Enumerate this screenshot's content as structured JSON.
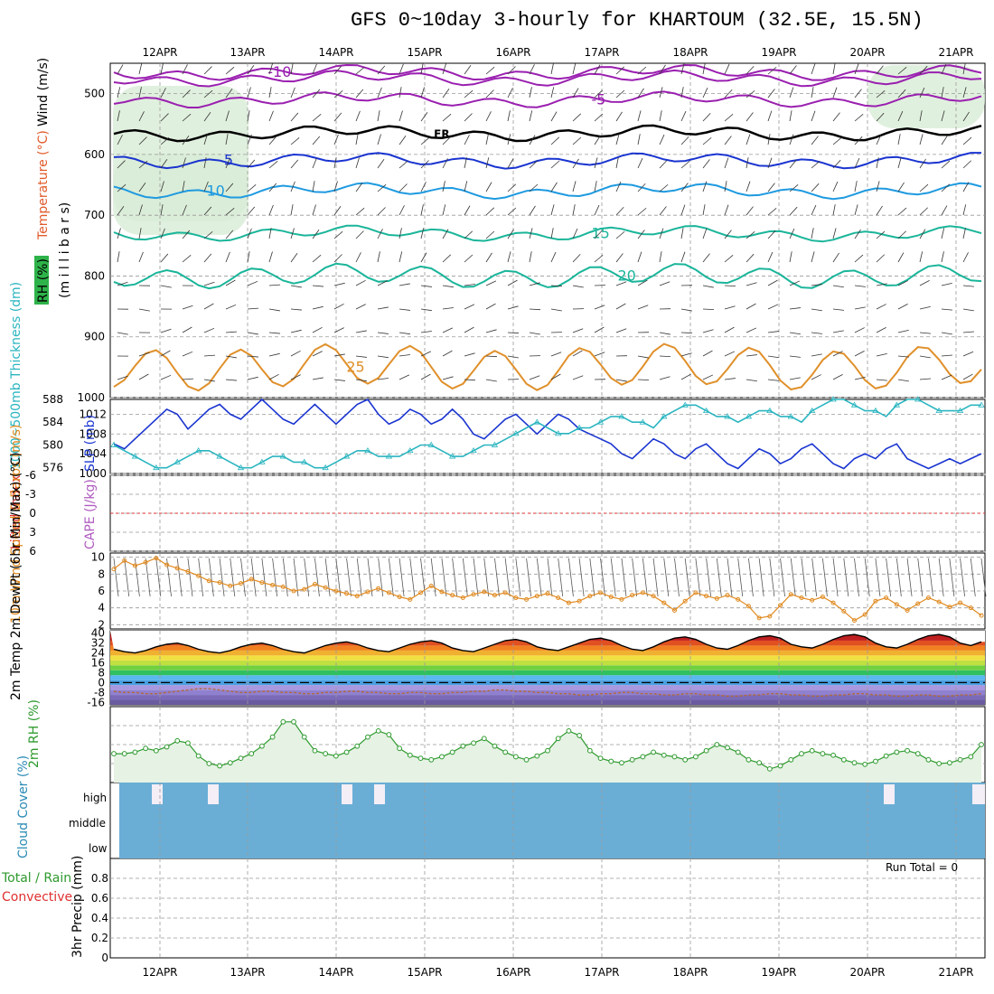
{
  "title": "GFS 0~10day 3-hourly for KHARTOUM (32.5E, 15.5N)",
  "colors": {
    "rh_band": "#2eb34a",
    "temperature_label": "#e05a2a",
    "wind_label": "#000000",
    "thickness": "#2ab5c0",
    "slp": "#1a34d0",
    "lifted_index": "#e03030",
    "cape": "#b05ac0",
    "wind10": "#e08a20",
    "rh2m": "#2e9a2e",
    "cloud_fill": "#6aaed6",
    "precip_total": "#2e9a2e",
    "precip_conv": "#e03030"
  },
  "chart_data": [
    {
      "id": "cross-section",
      "type": "heatmap",
      "ylabel_parts": [
        "RH (%)",
        "Temperature (°C)",
        "Wind (m/s)",
        "(m i l l i b a r s)"
      ],
      "x_dates": [
        "12APR",
        "13APR",
        "14APR",
        "15APR",
        "16APR",
        "17APR",
        "18APR",
        "19APR",
        "20APR",
        "21APR"
      ],
      "ylim": [
        1000,
        450
      ],
      "yticks": [
        500,
        600,
        700,
        800,
        900,
        1000
      ],
      "isotherms": [
        {
          "label": "-10",
          "color": "#9a1fb0",
          "p": 465,
          "label_x": 0.18
        },
        {
          "label": "",
          "color": "#9a1fb0",
          "p": 475,
          "label_x": null
        },
        {
          "label": "-5",
          "color": "#9a1fb0",
          "p": 510,
          "label_x": 0.55
        },
        {
          "label": "FR",
          "color": "#000000",
          "p": 565,
          "label_x": 0.37
        },
        {
          "label": "5",
          "color": "#1a34d0",
          "p": 610,
          "label_x": 0.13
        },
        {
          "label": "10",
          "color": "#1e9ae0",
          "p": 660,
          "label_x": 0.11
        },
        {
          "label": "15",
          "color": "#1ab59a",
          "p": 730,
          "label_x": 0.55
        },
        {
          "label": "20",
          "color": "#1ab59a",
          "p": 800,
          "label_x": 0.58
        },
        {
          "label": "25",
          "color": "#e0902a",
          "p": 950,
          "label_x": 0.27
        }
      ]
    },
    {
      "id": "thickness-slp",
      "type": "line",
      "ylabel_left": "1000~500mb Thickness (dm)",
      "ylabel_right": "SLP (mb)",
      "yticks_left": [
        576,
        580,
        584,
        588
      ],
      "yticks_right": [
        1000,
        1004,
        1008,
        1012
      ],
      "ylim_left": [
        575,
        588
      ],
      "ylim_right": [
        1000,
        1015
      ],
      "series": [
        {
          "name": "SLP (mb)",
          "color": "#1a34d0",
          "values": [
            1006,
            1005,
            1007,
            1009,
            1011,
            1013,
            1012,
            1009,
            1011,
            1013,
            1014,
            1012,
            1011,
            1013,
            1015,
            1013,
            1011,
            1010,
            1012,
            1014,
            1012,
            1010,
            1012,
            1014,
            1015,
            1012,
            1010,
            1011,
            1013,
            1012,
            1010,
            1011,
            1013,
            1011,
            1008,
            1007,
            1009,
            1011,
            1012,
            1010,
            1008,
            1010,
            1012,
            1011,
            1009,
            1008,
            1007,
            1006,
            1004,
            1003,
            1005,
            1007,
            1006,
            1004,
            1003,
            1005,
            1006,
            1004,
            1002,
            1001,
            1003,
            1005,
            1004,
            1002,
            1003,
            1005,
            1006,
            1004,
            1002,
            1001,
            1003,
            1004,
            1003,
            1005,
            1006,
            1003,
            1002,
            1001,
            1002,
            1003,
            1002,
            1003,
            1004
          ]
        },
        {
          "name": "Thickness (dm)",
          "color": "#2ab5c0",
          "values": [
            580,
            579,
            578,
            577,
            576,
            576,
            577,
            578,
            579,
            579,
            578,
            577,
            576,
            576,
            577,
            578,
            578,
            577,
            577,
            576,
            576,
            577,
            578,
            579,
            579,
            578,
            578,
            578,
            579,
            580,
            580,
            579,
            578,
            578,
            579,
            580,
            580,
            581,
            582,
            583,
            584,
            583,
            582,
            582,
            583,
            583,
            584,
            585,
            585,
            584,
            584,
            583,
            585,
            586,
            587,
            587,
            586,
            585,
            585,
            584,
            585,
            586,
            586,
            585,
            585,
            584,
            586,
            587,
            588,
            588,
            587,
            586,
            586,
            585,
            587,
            588,
            588,
            587,
            586,
            586,
            586,
            587,
            587
          ]
        }
      ]
    },
    {
      "id": "lifted-cape",
      "type": "line",
      "ylabel_left": "Lifted Index",
      "ylabel_right": "CAPE (J/kg)",
      "yticks": [
        6,
        3,
        0,
        -3,
        -6
      ],
      "ylim": [
        6,
        -6
      ],
      "series": []
    },
    {
      "id": "wind10m",
      "type": "line",
      "ylabel": "10m Wind Speed & Barbs (m/s)",
      "yticks": [
        2,
        4,
        6,
        8,
        10
      ],
      "ylim": [
        1.5,
        10.5
      ],
      "series": [
        {
          "name": "10m Wind Speed",
          "color": "#e08a20",
          "values": [
            8.6,
            9.6,
            9.0,
            9.4,
            9.9,
            9.1,
            8.7,
            8.3,
            7.8,
            7.2,
            7.0,
            6.6,
            6.9,
            7.4,
            7.0,
            6.7,
            6.5,
            6.0,
            6.2,
            6.8,
            6.4,
            6.0,
            5.7,
            5.4,
            5.9,
            6.3,
            5.8,
            5.3,
            5.0,
            5.8,
            6.6,
            5.9,
            5.5,
            5.2,
            5.6,
            5.9,
            5.5,
            5.8,
            5.2,
            5.0,
            5.4,
            5.7,
            5.2,
            4.6,
            4.8,
            5.4,
            5.8,
            5.3,
            5.0,
            5.5,
            5.8,
            5.4,
            4.6,
            3.7,
            4.8,
            5.8,
            5.4,
            5.1,
            5.5,
            5.0,
            4.2,
            2.8,
            3.0,
            4.3,
            5.6,
            5.2,
            4.9,
            5.3,
            4.6,
            3.6,
            2.5,
            3.2,
            4.8,
            5.2,
            4.4,
            3.7,
            4.5,
            5.2,
            4.7,
            4.1,
            4.6,
            4.0,
            3.1
          ]
        }
      ]
    },
    {
      "id": "temp2m",
      "type": "line",
      "ylabel": "2m Temp 2m DewPt (6hr Min/Max) (°C)",
      "yticks": [
        -16,
        -8,
        0,
        8,
        16,
        24,
        32,
        40
      ],
      "ylim": [
        -18,
        42
      ],
      "series": [
        {
          "name": "2m Temp",
          "color": "#000000",
          "values": [
            27,
            25,
            24,
            26,
            29,
            31,
            32,
            30,
            27,
            25,
            24,
            26,
            29,
            31,
            32,
            30,
            27,
            25,
            24,
            27,
            30,
            32,
            33,
            31,
            28,
            26,
            25,
            28,
            31,
            33,
            34,
            32,
            28,
            26,
            25,
            28,
            31,
            34,
            35,
            33,
            29,
            27,
            26,
            29,
            32,
            35,
            36,
            34,
            30,
            27,
            26,
            29,
            33,
            36,
            37,
            35,
            31,
            28,
            27,
            30,
            34,
            37,
            38,
            36,
            31,
            29,
            28,
            31,
            35,
            38,
            39,
            37,
            32,
            29,
            28,
            31,
            35,
            38,
            39,
            37,
            32,
            30,
            33
          ]
        },
        {
          "name": "2m DewPt",
          "color": "#b06a3a",
          "values": [
            -7,
            -8,
            -8,
            -9,
            -9,
            -8,
            -7,
            -6,
            -5,
            -5,
            -6,
            -7,
            -8,
            -8,
            -7,
            -7,
            -8,
            -8,
            -9,
            -9,
            -8,
            -8,
            -7,
            -7,
            -8,
            -8,
            -9,
            -9,
            -8,
            -8,
            -9,
            -9,
            -8,
            -8,
            -7,
            -7,
            -6,
            -6,
            -7,
            -7,
            -8,
            -8,
            -9,
            -9,
            -10,
            -10,
            -9,
            -9,
            -8,
            -8,
            -9,
            -9,
            -10,
            -10,
            -9,
            -9,
            -10,
            -10,
            -11,
            -11,
            -10,
            -10,
            -9,
            -9,
            -10,
            -10,
            -11,
            -11,
            -10,
            -10,
            -9,
            -9,
            -10,
            -10,
            -11,
            -11,
            -10,
            -10,
            -11,
            -11,
            -10,
            -10,
            -9
          ]
        }
      ]
    },
    {
      "id": "rh2m",
      "type": "area",
      "ylabel": "2m RH (%)",
      "ylim": [
        0,
        100
      ],
      "series": [
        {
          "name": "2m RH",
          "color": "#2e9a2e",
          "values": [
            38,
            38,
            40,
            45,
            42,
            47,
            55,
            52,
            35,
            25,
            22,
            26,
            32,
            38,
            48,
            60,
            80,
            80,
            60,
            42,
            38,
            35,
            40,
            48,
            60,
            68,
            63,
            45,
            36,
            32,
            30,
            34,
            40,
            48,
            52,
            58,
            48,
            40,
            34,
            30,
            35,
            42,
            58,
            68,
            62,
            42,
            32,
            28,
            26,
            30,
            34,
            40,
            36,
            34,
            30,
            34,
            42,
            50,
            46,
            40,
            30,
            26,
            18,
            22,
            30,
            38,
            42,
            38,
            36,
            30,
            26,
            24,
            28,
            35,
            40,
            42,
            38,
            30,
            25,
            26,
            30,
            34,
            50
          ]
        }
      ]
    },
    {
      "id": "cloud",
      "type": "bar",
      "ylabel": "Cloud Cover (%)",
      "levels": [
        "high",
        "middle",
        "low"
      ],
      "series": []
    },
    {
      "id": "precip",
      "type": "bar",
      "ylabel_parts": [
        "Total / Rain",
        "Convective",
        "3hr Precip (mm)"
      ],
      "yticks": [
        0,
        0.2,
        0.4,
        0.6,
        0.8
      ],
      "ylim": [
        0,
        1.0
      ],
      "annotation": "Run Total = 0",
      "series": []
    }
  ]
}
